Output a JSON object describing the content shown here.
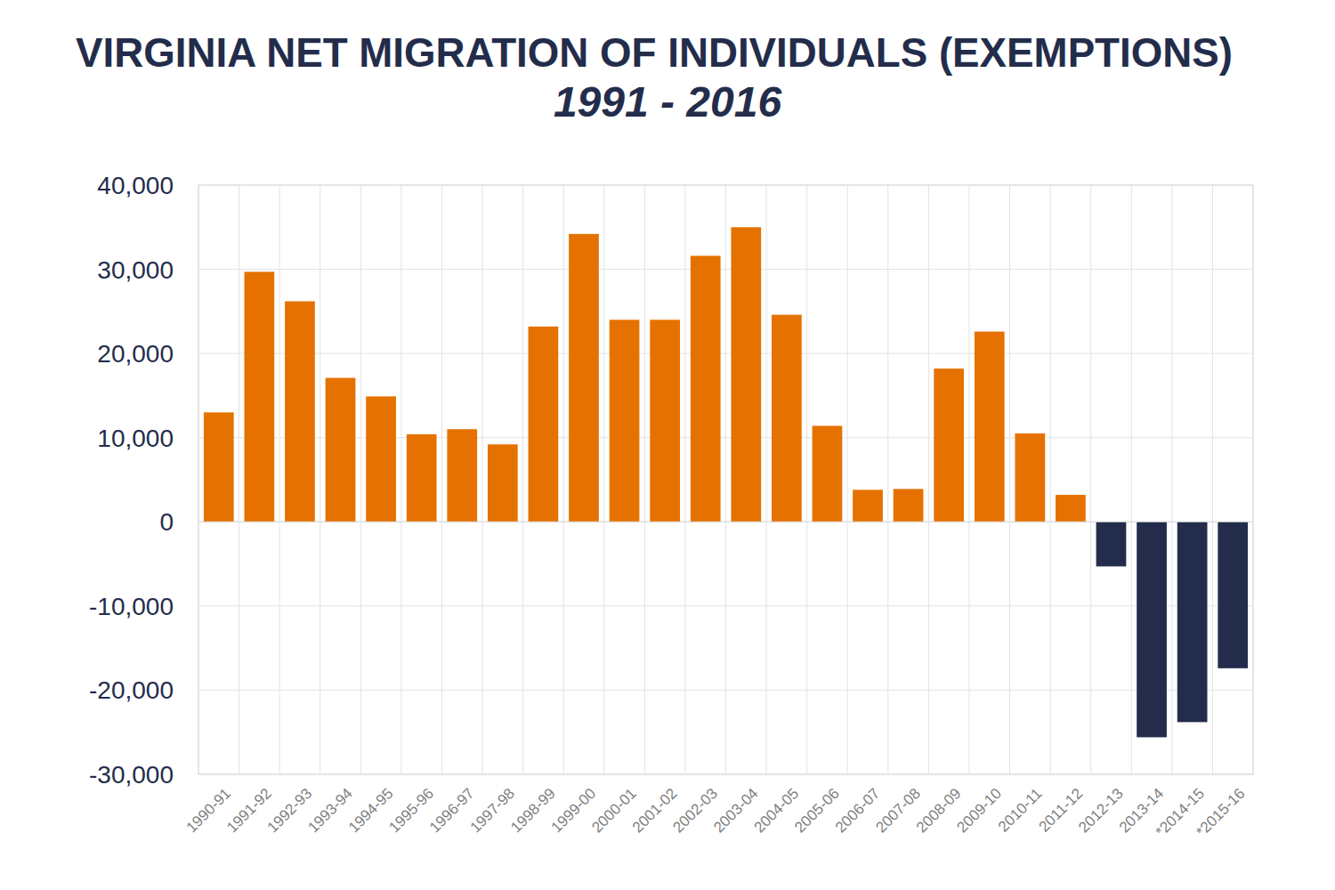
{
  "chart_data": {
    "type": "bar",
    "title": "VIRGINIA NET MIGRATION OF INDIVIDUALS (EXEMPTIONS)",
    "subtitle": "1991 - 2016",
    "categories": [
      "1990-91",
      "1991-92",
      "1992-93",
      "1993-94",
      "1994-95",
      "1995-96",
      "1996-97",
      "1997-98",
      "1998-99",
      "1999-00",
      "2000-01",
      "2001-02",
      "2002-03",
      "2003-04",
      "2004-05",
      "2005-06",
      "2006-07",
      "2007-08",
      "2008-09",
      "2009-10",
      "2010-11",
      "2011-12",
      "2012-13",
      "2013-14",
      "*2014-15",
      "*2015-16"
    ],
    "values": [
      13000,
      29700,
      26200,
      17100,
      14900,
      10400,
      11000,
      9200,
      23200,
      34200,
      24000,
      24000,
      31600,
      35000,
      24600,
      11400,
      3800,
      3900,
      18200,
      22600,
      10500,
      3200,
      -5300,
      -25600,
      -23800,
      -17400
    ],
    "colors": [
      "#e57200",
      "#e57200",
      "#e57200",
      "#e57200",
      "#e57200",
      "#e57200",
      "#e57200",
      "#e57200",
      "#e57200",
      "#e57200",
      "#e57200",
      "#e57200",
      "#e57200",
      "#e57200",
      "#e57200",
      "#e57200",
      "#e57200",
      "#e57200",
      "#e57200",
      "#e57200",
      "#e57200",
      "#e57200",
      "#232d4b",
      "#232d4b",
      "#232d4b",
      "#232d4b"
    ],
    "ylim": [
      -30000,
      40000
    ],
    "yticks": [
      {
        "value": -30000,
        "label": "-30,000"
      },
      {
        "value": -20000,
        "label": "-20,000"
      },
      {
        "value": -10000,
        "label": "-10,000"
      },
      0,
      {
        "value": 10000,
        "label": "10,000"
      },
      {
        "value": 20000,
        "label": "20,000"
      },
      {
        "value": 30000,
        "label": "30,000"
      },
      {
        "value": 40000,
        "label": "40,000"
      }
    ],
    "grid": true
  }
}
